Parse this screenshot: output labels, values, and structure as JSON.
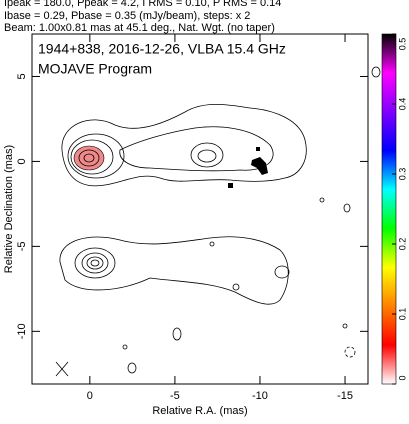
{
  "chart_data": {
    "type": "contour",
    "header": [
      "Ipeak = 180.0, Ppeak = 4.2, I RMS = 0.10, P RMS = 0.14",
      "Ibase = 0.29, Pbase = 0.35 (mJy/beam), steps: x 2",
      "Beam: 1.00x0.81 mas at 45.1 deg., Nat. Wgt. (no taper)"
    ],
    "title": "1944+838, 2016-12-26, VLBA 15.4 GHz",
    "subtitle": "MOJAVE Program",
    "xlabel": "Relative R.A. (mas)",
    "ylabel": "Relative Declination (mas)",
    "xlim": [
      3.4,
      -16.35
    ],
    "xticks": [
      0,
      -5,
      -10,
      -15
    ],
    "ylim": [
      -13.1,
      7.5
    ],
    "yticks": [
      5,
      0,
      -5,
      -10
    ],
    "colorbar": {
      "lim": [
        0,
        0.5
      ],
      "ticks": [
        0,
        0.1,
        0.2,
        0.3,
        0.4,
        0.5
      ],
      "colors": [
        "#ffffff",
        "#ff0000",
        "#ff8000",
        "#ffff00",
        "#00ff00",
        "#00ffff",
        "#0000ff",
        "#8000ff",
        "#ff00ff",
        "#000000"
      ]
    }
  }
}
